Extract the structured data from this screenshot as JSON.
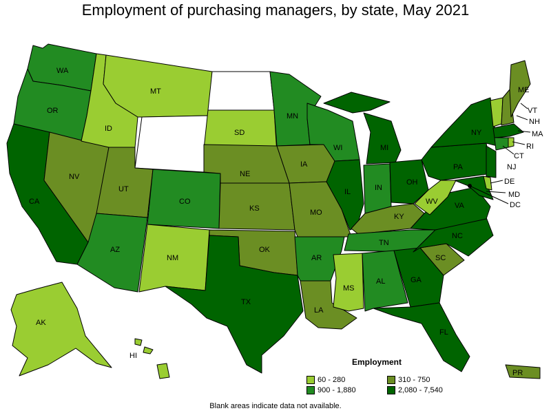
{
  "title": "Employment of purchasing managers, by state, May 2021",
  "legend": {
    "title": "Employment",
    "items": [
      {
        "label": "60 - 280",
        "color": "#9acd32"
      },
      {
        "label": "310 - 750",
        "color": "#6b8e23"
      },
      {
        "label": "900 - 1,880",
        "color": "#228b22"
      },
      {
        "label": "2,080 - 7,540",
        "color": "#006400"
      }
    ]
  },
  "footnote": "Blank areas indicate data not available.",
  "states": {
    "WA": "WA",
    "OR": "OR",
    "CA": "CA",
    "NV": "NV",
    "ID": "ID",
    "MT": "MT",
    "UT": "UT",
    "AZ": "AZ",
    "CO": "CO",
    "NM": "NM",
    "SD": "SD",
    "NE": "NE",
    "KS": "KS",
    "OK": "OK",
    "TX": "TX",
    "MN": "MN",
    "IA": "IA",
    "MO": "MO",
    "AR": "AR",
    "LA": "LA",
    "WI": "WI",
    "IL": "IL",
    "MS": "MS",
    "MI": "MI",
    "IN": "IN",
    "KY": "KY",
    "TN": "TN",
    "AL": "AL",
    "OH": "OH",
    "WV": "WV",
    "VA": "VA",
    "NC": "NC",
    "SC": "SC",
    "GA": "GA",
    "FL": "FL",
    "PA": "PA",
    "NY": "NY",
    "ME": "ME",
    "VT": "VT",
    "NH": "NH",
    "MA": "MA",
    "RI": "RI",
    "CT": "CT",
    "NJ": "NJ",
    "DE": "DE",
    "MD": "MD",
    "DC": "DC",
    "AK": "AK",
    "HI": "HI",
    "PR": "PR"
  }
}
